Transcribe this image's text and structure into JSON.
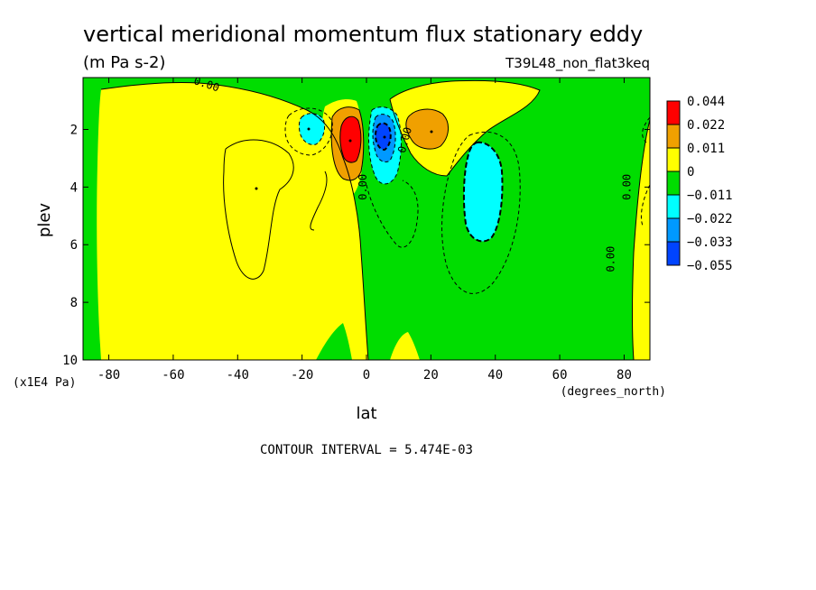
{
  "chart_data": {
    "type": "heatmap",
    "title": "vertical meridional momentum flux stationary eddy",
    "units": "(m Pa s-2)",
    "dataset": "T39L48_non_flat3keq",
    "xlabel": "lat",
    "xunits": "(degrees_north)",
    "ylabel": "plev",
    "yunits": "(x1E4 Pa)",
    "xlim": [
      -88,
      88
    ],
    "ylim": [
      10,
      0.2
    ],
    "xticks": [
      -80,
      -60,
      -40,
      -20,
      0,
      20,
      40,
      60,
      80
    ],
    "xtick_labels": [
      "-80",
      "-60",
      "-40",
      "-20",
      "0",
      "20",
      "40",
      "60",
      "80"
    ],
    "yticks": [
      2,
      4,
      6,
      8,
      10
    ],
    "ytick_labels": [
      "2",
      "4",
      "6",
      "8",
      "10"
    ],
    "contour_interval_text": "CONTOUR INTERVAL = 5.474E-03",
    "contour_labels": [
      {
        "text": "0.00",
        "lat": -50,
        "plev": 0.55,
        "rot": 18
      },
      {
        "text": "0.00",
        "lat": 0,
        "plev": 4.0,
        "rot": -90
      },
      {
        "text": "0.00",
        "lat": 13,
        "plev": 2.4,
        "rot": -75
      },
      {
        "text": "0.00",
        "lat": 82,
        "plev": 4.0,
        "rot": -90
      },
      {
        "text": "0.00",
        "lat": 77,
        "plev": 6.5,
        "rot": -90
      }
    ],
    "colorbar": {
      "levels": [
        "0.044",
        "0.022",
        "0.011",
        "0",
        "-0.011",
        "-0.022",
        "-0.033",
        "-0.055"
      ],
      "colors": [
        "#ff0000",
        "#f0a000",
        "#ffff00",
        "#00dd00",
        "#00ffff",
        "#0099ff",
        "#0044ff"
      ]
    },
    "features": [
      {
        "kind": "max",
        "lat": -5,
        "plev": 2.3,
        "value": 0.044
      },
      {
        "kind": "min",
        "lat": 5,
        "plev": 2.3,
        "value": -0.055
      },
      {
        "kind": "max",
        "lat": 18,
        "plev": 2.0,
        "value": 0.022
      },
      {
        "kind": "min",
        "lat": -20,
        "plev": 2.0,
        "value": -0.022
      },
      {
        "kind": "min",
        "lat": 35,
        "plev": 4.3,
        "value": -0.022
      }
    ]
  }
}
